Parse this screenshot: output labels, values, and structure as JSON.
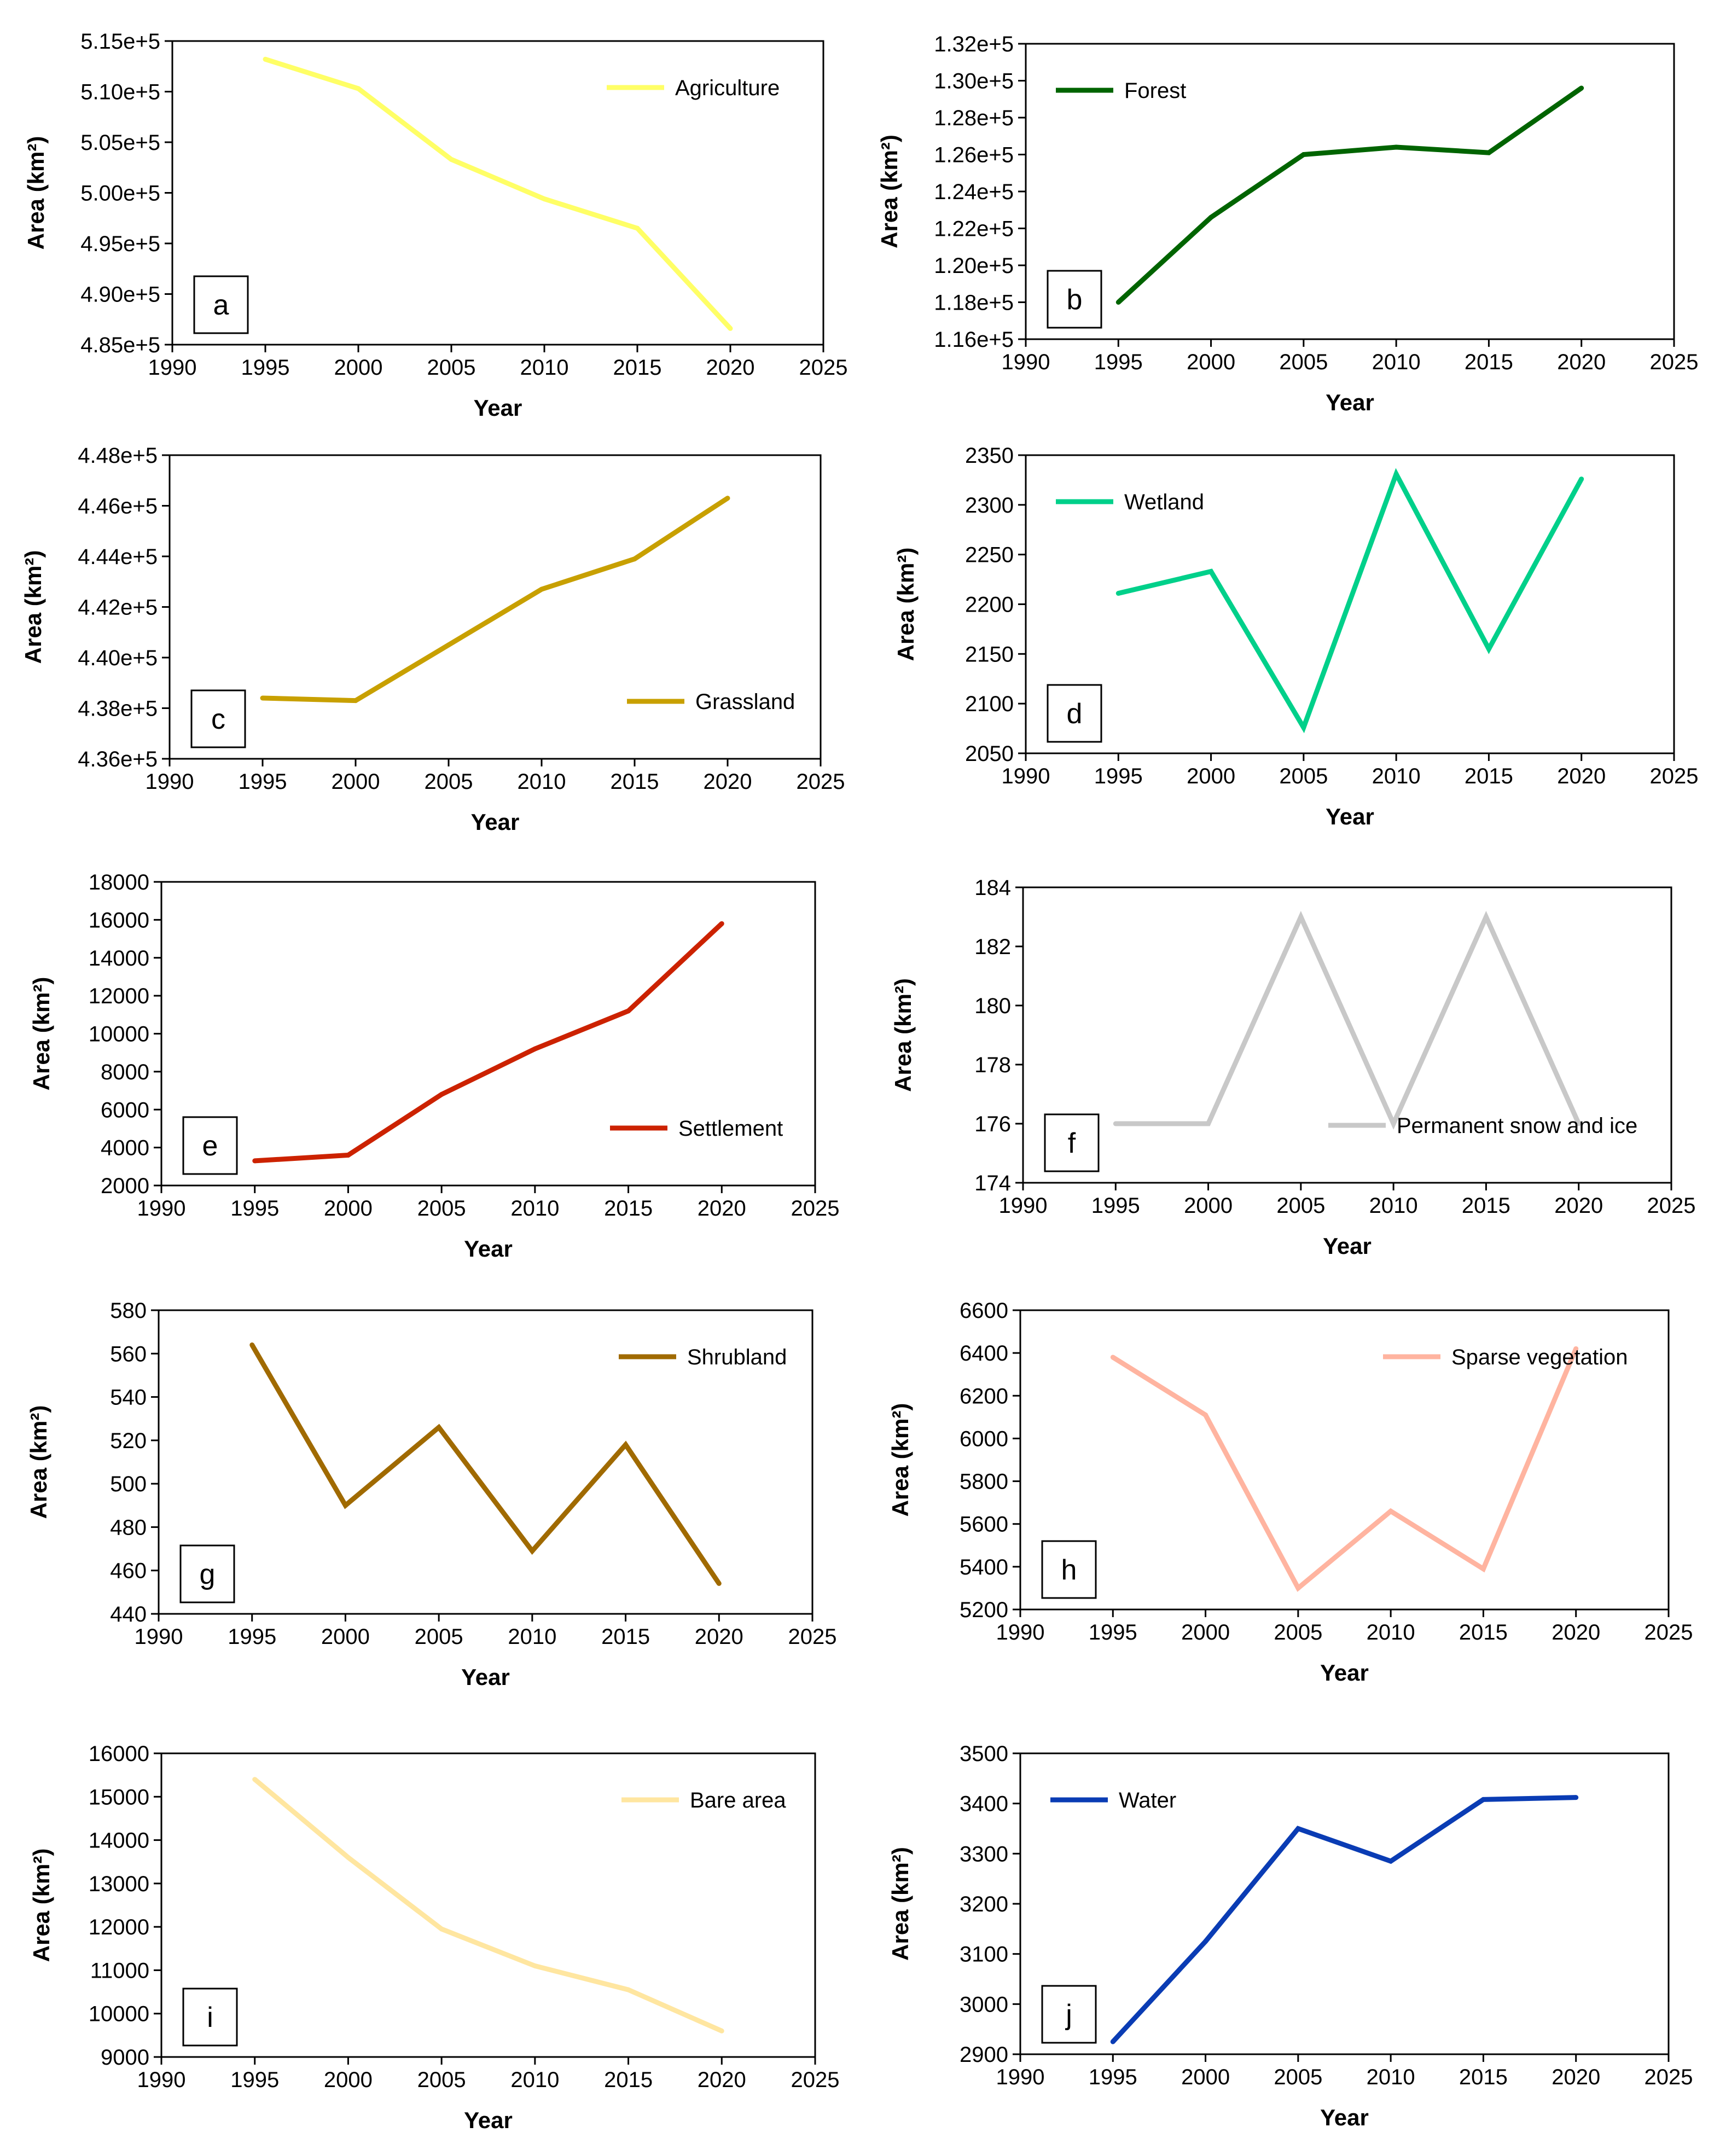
{
  "chart_data": [
    {
      "id": "a",
      "type": "line",
      "panel_label": "a",
      "series": [
        {
          "name": "Agriculture",
          "color": "#FFFF66",
          "x": [
            1995,
            2000,
            2005,
            2010,
            2015,
            2020
          ],
          "values": [
            513200,
            510300,
            503300,
            499400,
            496500,
            486600
          ]
        }
      ],
      "xlabel": "Year",
      "ylabel": "Area (km²)",
      "xlim": [
        1990,
        2025
      ],
      "ylim": [
        485000,
        515000
      ],
      "xticks": [
        1990,
        1995,
        2000,
        2005,
        2010,
        2015,
        2020,
        2025
      ],
      "yticks": [
        485000,
        490000,
        495000,
        500000,
        505000,
        510000,
        515000
      ],
      "ytick_labels": [
        "4.85e+5",
        "4.90e+5",
        "4.95e+5",
        "5.00e+5",
        "5.05e+5",
        "5.10e+5",
        "5.15e+5"
      ],
      "legend_position": "top-right",
      "label_position": "bottom-left",
      "grid": false
    },
    {
      "id": "b",
      "type": "line",
      "panel_label": "b",
      "series": [
        {
          "name": "Forest",
          "color": "#006400",
          "x": [
            1995,
            2000,
            2005,
            2010,
            2015,
            2020
          ],
          "values": [
            118000,
            122600,
            126000,
            126400,
            126100,
            129600
          ]
        }
      ],
      "xlabel": "Year",
      "ylabel": "Area (km²)",
      "xlim": [
        1990,
        2025
      ],
      "ylim": [
        116000,
        132000
      ],
      "xticks": [
        1990,
        1995,
        2000,
        2005,
        2010,
        2015,
        2020,
        2025
      ],
      "yticks": [
        116000,
        118000,
        120000,
        122000,
        124000,
        126000,
        128000,
        130000,
        132000
      ],
      "ytick_labels": [
        "1.16e+5",
        "1.18e+5",
        "1.20e+5",
        "1.22e+5",
        "1.24e+5",
        "1.26e+5",
        "1.28e+5",
        "1.30e+5",
        "1.32e+5"
      ],
      "legend_position": "top-left",
      "label_position": "bottom-left",
      "grid": false
    },
    {
      "id": "c",
      "type": "line",
      "panel_label": "c",
      "series": [
        {
          "name": "Grassland",
          "color": "#C8A000",
          "x": [
            1995,
            2000,
            2005,
            2010,
            2015,
            2020
          ],
          "values": [
            438400,
            438300,
            440500,
            442700,
            443900,
            446300
          ]
        }
      ],
      "xlabel": "Year",
      "ylabel": "Area (km²)",
      "xlim": [
        1990,
        2025
      ],
      "ylim": [
        436000,
        448000
      ],
      "xticks": [
        1990,
        1995,
        2000,
        2005,
        2010,
        2015,
        2020,
        2025
      ],
      "yticks": [
        436000,
        438000,
        440000,
        442000,
        444000,
        446000,
        448000
      ],
      "ytick_labels": [
        "4.36e+5",
        "4.38e+5",
        "4.40e+5",
        "4.42e+5",
        "4.44e+5",
        "4.46e+5",
        "4.48e+5"
      ],
      "legend_position": "bottom-right",
      "label_position": "bottom-left",
      "grid": false
    },
    {
      "id": "d",
      "type": "line",
      "panel_label": "d",
      "series": [
        {
          "name": "Wetland",
          "color": "#00D08A",
          "x": [
            1995,
            2000,
            2005,
            2010,
            2015,
            2020
          ],
          "values": [
            2211,
            2233,
            2076,
            2331,
            2155,
            2326
          ]
        }
      ],
      "xlabel": "Year",
      "ylabel": "Area  (km²)",
      "xlim": [
        1990,
        2025
      ],
      "ylim": [
        2050,
        2350
      ],
      "xticks": [
        1990,
        1995,
        2000,
        2005,
        2010,
        2015,
        2020,
        2025
      ],
      "yticks": [
        2050,
        2100,
        2150,
        2200,
        2250,
        2300,
        2350
      ],
      "ytick_labels": [
        "2050",
        "2100",
        "2150",
        "2200",
        "2250",
        "2300",
        "2350"
      ],
      "legend_position": "top-left",
      "label_position": "bottom-left",
      "grid": false
    },
    {
      "id": "e",
      "type": "line",
      "panel_label": "e",
      "series": [
        {
          "name": "Settlement",
          "color": "#CC2200",
          "x": [
            1995,
            2000,
            2005,
            2010,
            2015,
            2020
          ],
          "values": [
            3300,
            3600,
            6800,
            9200,
            11200,
            15800
          ]
        }
      ],
      "xlabel": "Year",
      "ylabel": "Area  (km²)",
      "xlim": [
        1990,
        2025
      ],
      "ylim": [
        2000,
        18000
      ],
      "xticks": [
        1990,
        1995,
        2000,
        2005,
        2010,
        2015,
        2020,
        2025
      ],
      "yticks": [
        2000,
        4000,
        6000,
        8000,
        10000,
        12000,
        14000,
        16000,
        18000
      ],
      "ytick_labels": [
        "2000",
        "4000",
        "6000",
        "8000",
        "10000",
        "12000",
        "14000",
        "16000",
        "18000"
      ],
      "legend_position": "bottom-right",
      "label_position": "bottom-left",
      "grid": false
    },
    {
      "id": "f",
      "type": "line",
      "panel_label": "f",
      "series": [
        {
          "name": "Permanent snow and ice",
          "color": "#C8C8C8",
          "x": [
            1995,
            2000,
            2005,
            2010,
            2015,
            2020
          ],
          "values": [
            176,
            176,
            183,
            176,
            183,
            176
          ]
        }
      ],
      "xlabel": "Year",
      "ylabel": "Area (km²)",
      "xlim": [
        1990,
        2025
      ],
      "ylim": [
        174,
        184
      ],
      "xticks": [
        1990,
        1995,
        2000,
        2005,
        2010,
        2015,
        2020,
        2025
      ],
      "yticks": [
        174,
        176,
        178,
        180,
        182,
        184
      ],
      "ytick_labels": [
        "174",
        "176",
        "178",
        "180",
        "182",
        "184"
      ],
      "legend_position": "bottom-right",
      "label_position": "bottom-left",
      "grid": false
    },
    {
      "id": "g",
      "type": "line",
      "panel_label": "g",
      "series": [
        {
          "name": "Shrubland",
          "color": "#A06A00",
          "x": [
            1995,
            2000,
            2005,
            2010,
            2015,
            2020
          ],
          "values": [
            564,
            490,
            526,
            469,
            518,
            454
          ]
        }
      ],
      "xlabel": "Year",
      "ylabel": "Area (km²)",
      "xlim": [
        1990,
        2025
      ],
      "ylim": [
        440,
        580
      ],
      "xticks": [
        1990,
        1995,
        2000,
        2005,
        2010,
        2015,
        2020,
        2025
      ],
      "yticks": [
        440,
        460,
        480,
        500,
        520,
        540,
        560,
        580
      ],
      "ytick_labels": [
        "440",
        "460",
        "480",
        "500",
        "520",
        "540",
        "560",
        "580"
      ],
      "legend_position": "top-right",
      "label_position": "bottom-left",
      "grid": false
    },
    {
      "id": "h",
      "type": "line",
      "panel_label": "h",
      "series": [
        {
          "name": "Sparse vegetation",
          "color": "#FFB4A0",
          "x": [
            1995,
            2000,
            2005,
            2010,
            2015,
            2020
          ],
          "values": [
            6380,
            6110,
            5300,
            5660,
            5390,
            6420
          ]
        }
      ],
      "xlabel": "Year",
      "ylabel": "Area (km²)",
      "xlim": [
        1990,
        2025
      ],
      "ylim": [
        5200,
        6600
      ],
      "xticks": [
        1990,
        1995,
        2000,
        2005,
        2010,
        2015,
        2020,
        2025
      ],
      "yticks": [
        5200,
        5400,
        5600,
        5800,
        6000,
        6200,
        6400,
        6600
      ],
      "ytick_labels": [
        "5200",
        "5400",
        "5600",
        "5800",
        "6000",
        "6200",
        "6400",
        "6600"
      ],
      "legend_position": "top-right",
      "label_position": "bottom-left",
      "grid": false
    },
    {
      "id": "i",
      "type": "line",
      "panel_label": "i",
      "series": [
        {
          "name": "Bare area",
          "color": "#FFE6A0",
          "x": [
            1995,
            2000,
            2005,
            2010,
            2015,
            2020
          ],
          "values": [
            15400,
            13600,
            11950,
            11100,
            10550,
            9600
          ]
        }
      ],
      "xlabel": "Year",
      "ylabel": "Area (km²)",
      "xlim": [
        1990,
        2025
      ],
      "ylim": [
        9000,
        16000
      ],
      "xticks": [
        1990,
        1995,
        2000,
        2005,
        2010,
        2015,
        2020,
        2025
      ],
      "yticks": [
        9000,
        10000,
        11000,
        12000,
        13000,
        14000,
        15000,
        16000
      ],
      "ytick_labels": [
        "9000",
        "10000",
        "11000",
        "12000",
        "13000",
        "14000",
        "15000",
        "16000"
      ],
      "legend_position": "top-right",
      "label_position": "bottom-left",
      "grid": false
    },
    {
      "id": "j",
      "type": "line",
      "panel_label": "j",
      "series": [
        {
          "name": "Water",
          "color": "#0A3CB4",
          "x": [
            1995,
            2000,
            2005,
            2010,
            2015,
            2020
          ],
          "values": [
            2925,
            3125,
            3350,
            3285,
            3408,
            3412
          ]
        }
      ],
      "xlabel": "Year",
      "ylabel": "Area (km²)",
      "xlim": [
        1990,
        2025
      ],
      "ylim": [
        2900,
        3500
      ],
      "xticks": [
        1990,
        1995,
        2000,
        2005,
        2010,
        2015,
        2020,
        2025
      ],
      "yticks": [
        2900,
        3000,
        3100,
        3200,
        3300,
        3400,
        3500
      ],
      "ytick_labels": [
        "2900",
        "3000",
        "3100",
        "3200",
        "3300",
        "3400",
        "3500"
      ],
      "legend_position": "top-left",
      "label_position": "bottom-left",
      "grid": false
    }
  ]
}
